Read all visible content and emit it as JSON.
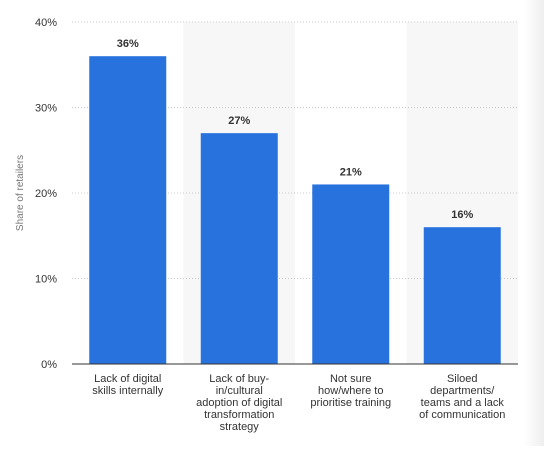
{
  "chart_data": {
    "type": "bar",
    "title": "",
    "xlabel": "",
    "ylabel": "Share of retailers",
    "categories": [
      "Lack of digital skills internally",
      "Lack of buy-in/cultural adoption of digital transformation strategy",
      "Not sure how/where to prioritise training",
      "Siloed departments/ teams and a lack of communication"
    ],
    "category_lines": [
      [
        "Lack of digital",
        "skills internally"
      ],
      [
        "Lack of buy-",
        "in/cultural",
        "adoption of digital",
        "transformation",
        "strategy"
      ],
      [
        "Not sure",
        "how/where to",
        "prioritise training"
      ],
      [
        "Siloed",
        "departments/",
        "teams and a lack",
        "of communication"
      ]
    ],
    "values": [
      36,
      27,
      21,
      16
    ],
    "value_labels": [
      "36%",
      "27%",
      "21%",
      "16%"
    ],
    "yticks": [
      0,
      10,
      20,
      30,
      40
    ],
    "ytick_labels": [
      "0%",
      "10%",
      "20%",
      "30%",
      "40%"
    ],
    "ylim": [
      0,
      40
    ],
    "grid": true,
    "legend": "none"
  },
  "colors": {
    "bar": "#2872de",
    "band": "#f7f7f7",
    "grid": "#c9c9c9",
    "axis": "#333333",
    "text": "#333333",
    "ylabel": "#777777"
  }
}
